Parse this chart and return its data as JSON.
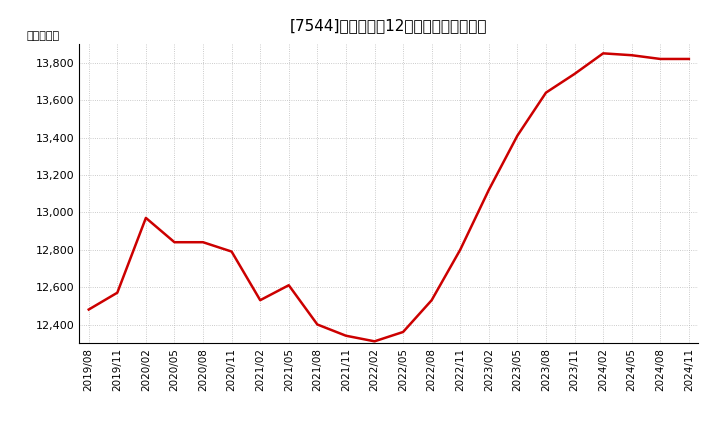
{
  "title_text": "[7544]　売上高の12か月移動合計の推移",
  "ylabel": "（百万円）",
  "line_color": "#cc0000",
  "background_color": "#ffffff",
  "plot_bg_color": "#ffffff",
  "grid_color": "#bbbbbb",
  "xlabels": [
    "2019/08",
    "2019/11",
    "2020/02",
    "2020/05",
    "2020/08",
    "2020/11",
    "2021/02",
    "2021/05",
    "2021/08",
    "2021/11",
    "2022/02",
    "2022/05",
    "2022/08",
    "2022/11",
    "2023/02",
    "2023/05",
    "2023/08",
    "2023/11",
    "2024/02",
    "2024/05",
    "2024/08",
    "2024/11"
  ],
  "x_values": [
    0,
    3,
    6,
    9,
    12,
    15,
    18,
    21,
    24,
    27,
    30,
    33,
    36,
    39,
    42,
    45,
    48,
    51,
    54,
    57,
    60,
    63
  ],
  "y_values": [
    12480,
    12570,
    12970,
    12840,
    12840,
    12790,
    12530,
    12610,
    12400,
    12340,
    12310,
    12360,
    12530,
    12800,
    13120,
    13410,
    13640,
    13740,
    13850,
    13840,
    13820,
    13820
  ],
  "ylim": [
    12300,
    13900
  ],
  "yticks": [
    12400,
    12600,
    12800,
    13000,
    13200,
    13400,
    13600,
    13800
  ],
  "line_width": 1.8
}
